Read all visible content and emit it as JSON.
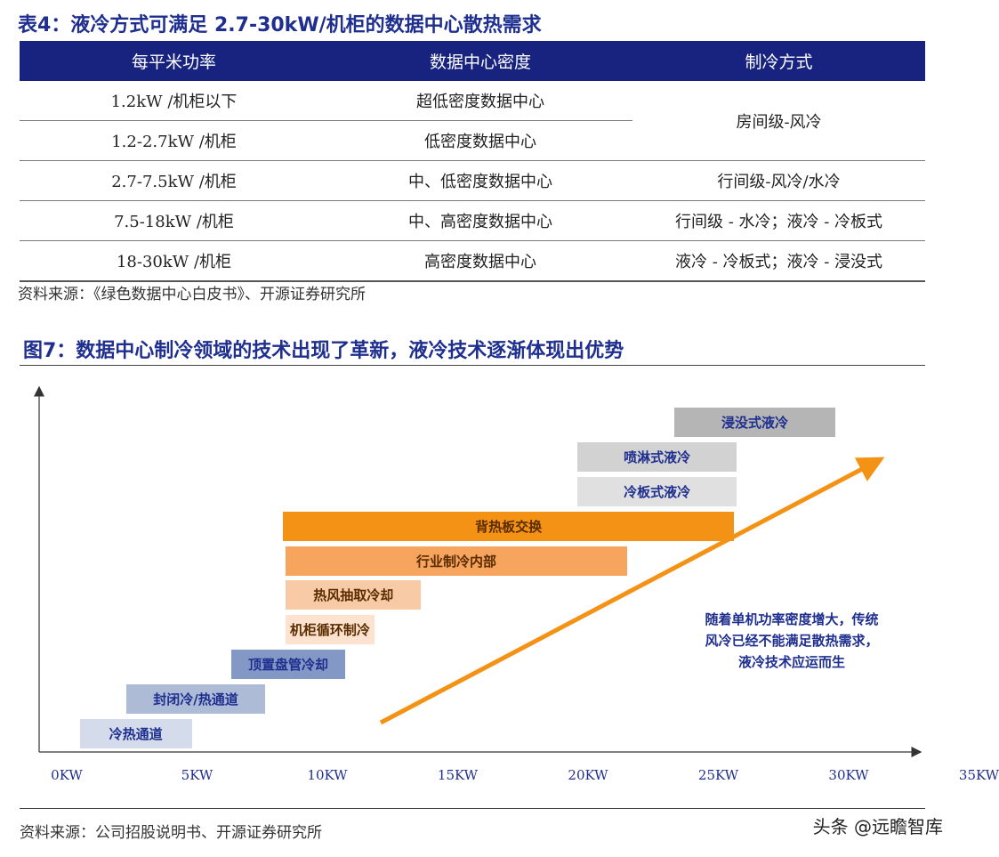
{
  "table4": {
    "title": "表4：液冷方式可满足 2.7-30kW/机柜的数据中心散热需求",
    "headers": [
      "每平米功率",
      "数据中心密度",
      "制冷方式"
    ],
    "rows": [
      [
        "1.2kW /机柜以下",
        "超低密度数据中心",
        "房间级-风冷"
      ],
      [
        "1.2-2.7kW /机柜",
        "低密度数据中心"
      ],
      [
        "2.7-7.5kW /机柜",
        "中、低密度数据中心",
        "行间级-风冷/水冷"
      ],
      [
        "7.5-18kW /机柜",
        "中、高密度数据中心",
        "行间级 - 水冷；液冷 - 冷板式"
      ],
      [
        "18-30kW /机柜",
        "高密度数据中心",
        "液冷 - 冷板式；液冷 - 浸没式"
      ]
    ],
    "source": "资料来源：《绿色数据中心白皮书》、开源证券研究所"
  },
  "figure7": {
    "title": "图7：数据中心制冷领域的技术出现了革新，液冷技术逐渐体现出优势",
    "x_ticks": [
      "0KW",
      "5KW",
      "10KW",
      "15KW",
      "20KW",
      "25KW",
      "30KW",
      "35KW"
    ],
    "bars": [
      {
        "label": "冷热通道",
        "start_kw": 0.5,
        "end_kw": 4.8,
        "color": "#d4dcec"
      },
      {
        "label": "封闭冷/热通道",
        "start_kw": 2.3,
        "end_kw": 7.6,
        "color": "#adbbd7"
      },
      {
        "label": "顶置盘管冷却",
        "start_kw": 6.3,
        "end_kw": 10.7,
        "color": "#8498c5"
      },
      {
        "label": "机柜循环制冷",
        "start_kw": 8.4,
        "end_kw": 11.8,
        "color": "#fde3cf"
      },
      {
        "label": "热风抽取冷却",
        "start_kw": 8.4,
        "end_kw": 13.6,
        "color": "#f9caa6"
      },
      {
        "label": "行业制冷内部",
        "start_kw": 8.4,
        "end_kw": 21.5,
        "color": "#f6a45e"
      },
      {
        "label": "背热板交换",
        "start_kw": 8.3,
        "end_kw": 25.6,
        "color": "#f39214"
      },
      {
        "label": "冷板式液冷",
        "start_kw": 19.6,
        "end_kw": 25.7,
        "color": "#e0e0e0"
      },
      {
        "label": "喷淋式液冷",
        "start_kw": 19.6,
        "end_kw": 25.7,
        "color": "#d2d2d2"
      },
      {
        "label": "浸没式液冷",
        "start_kw": 23.3,
        "end_kw": 29.5,
        "color": "#b5b5b5"
      }
    ],
    "note_lines": [
      "随着单机功率密度增大，传统",
      "风冷已经不能满足散热需求，",
      "液冷技术应运而生"
    ],
    "source": "资料来源：公司招股说明书、开源证券研究所",
    "watermark": "头条 @远瞻智库",
    "colors": {
      "title": "#1f2f8f",
      "header_bg": "#17237f",
      "arrow": "#f39214"
    }
  }
}
